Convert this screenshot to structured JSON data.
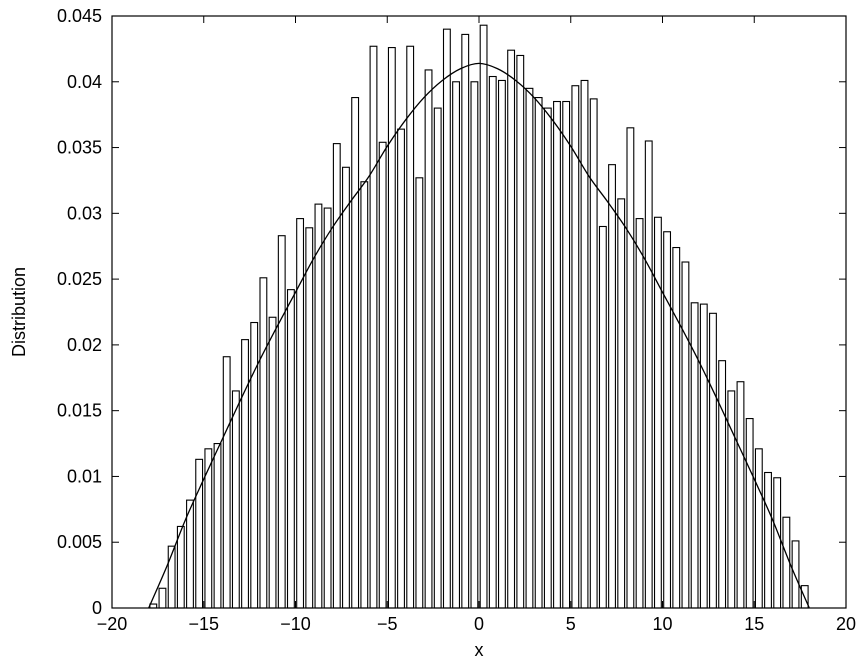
{
  "chart_data": {
    "type": "bar",
    "title": "",
    "xlabel": "x",
    "ylabel": "Distribution",
    "xlim": [
      -20,
      20
    ],
    "ylim": [
      0,
      0.045
    ],
    "grid": false,
    "legend": "none",
    "xticks": [
      "-20",
      "-15",
      "-10",
      "-5",
      "0",
      "5",
      "10",
      "15",
      "20"
    ],
    "yticks": [
      "0",
      "0.005",
      "0.01",
      "0.015",
      "0.02",
      "0.025",
      "0.03",
      "0.035",
      "0.04",
      "0.045"
    ],
    "bin_width": 0.5,
    "x": [
      -17.75,
      -17.25,
      -16.75,
      -16.25,
      -15.75,
      -15.25,
      -14.75,
      -14.25,
      -13.75,
      -13.25,
      -12.75,
      -12.25,
      -11.75,
      -11.25,
      -10.75,
      -10.25,
      -9.75,
      -9.25,
      -8.75,
      -8.25,
      -7.75,
      -7.25,
      -6.75,
      -6.25,
      -5.75,
      -5.25,
      -4.75,
      -4.25,
      -3.75,
      -3.25,
      -2.75,
      -2.25,
      -1.75,
      -1.25,
      -0.75,
      -0.25,
      0.25,
      0.75,
      1.25,
      1.75,
      2.25,
      2.75,
      3.25,
      3.75,
      4.25,
      4.75,
      5.25,
      5.75,
      6.25,
      6.75,
      7.25,
      7.75,
      8.25,
      8.75,
      9.25,
      9.75,
      10.25,
      10.75,
      11.25,
      11.75,
      12.25,
      12.75,
      13.25,
      13.75,
      14.25,
      14.75,
      15.25,
      15.75,
      16.25,
      16.75,
      17.25,
      17.75
    ],
    "series": [
      {
        "type": "bar",
        "values": [
          0.0003,
          0.0015,
          0.0047,
          0.0062,
          0.0082,
          0.0113,
          0.0121,
          0.0125,
          0.0191,
          0.0165,
          0.0204,
          0.0217,
          0.0251,
          0.0221,
          0.0283,
          0.0242,
          0.0296,
          0.0289,
          0.0307,
          0.0304,
          0.0353,
          0.0335,
          0.0388,
          0.0324,
          0.0427,
          0.0354,
          0.0426,
          0.0364,
          0.0427,
          0.0327,
          0.0409,
          0.038,
          0.044,
          0.04,
          0.0436,
          0.04,
          0.0443,
          0.0404,
          0.0401,
          0.0424,
          0.042,
          0.0395,
          0.0388,
          0.038,
          0.0385,
          0.0385,
          0.0397,
          0.0401,
          0.0387,
          0.029,
          0.0337,
          0.0311,
          0.0365,
          0.0296,
          0.0355,
          0.0297,
          0.0286,
          0.0274,
          0.0263,
          0.0232,
          0.0231,
          0.0224,
          0.0188,
          0.0165,
          0.0172,
          0.0144,
          0.0121,
          0.0103,
          0.0099,
          0.0069,
          0.0051,
          0.0017
        ]
      },
      {
        "type": "line",
        "x": [
          -18,
          -17,
          -16,
          -15,
          -14,
          -13,
          -12,
          -11,
          -10,
          -9,
          -8,
          -7,
          -6,
          -5,
          -4,
          -3,
          -2,
          -1,
          0,
          1,
          2,
          3,
          4,
          5,
          6,
          7,
          8,
          9,
          10,
          11,
          12,
          13,
          14,
          15,
          16,
          17,
          18
        ],
        "y": [
          0,
          0.0032,
          0.0067,
          0.0098,
          0.0128,
          0.0158,
          0.0187,
          0.0214,
          0.024,
          0.0266,
          0.0289,
          0.0309,
          0.0328,
          0.0351,
          0.0371,
          0.0388,
          0.0401,
          0.041,
          0.0414,
          0.041,
          0.0401,
          0.0388,
          0.0371,
          0.0351,
          0.0328,
          0.0309,
          0.0289,
          0.0266,
          0.024,
          0.0214,
          0.0187,
          0.0158,
          0.0128,
          0.0098,
          0.0067,
          0.0032,
          0
        ]
      }
    ]
  }
}
